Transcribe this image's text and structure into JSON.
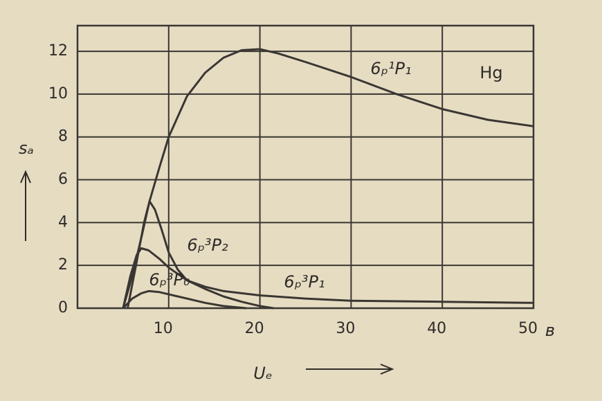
{
  "chart_data": {
    "type": "line",
    "xlim": [
      0,
      50
    ],
    "ylim": [
      0,
      13.2
    ],
    "xticks": [
      10,
      20,
      30,
      40,
      50
    ],
    "yticks": [
      0,
      2,
      4,
      6,
      8,
      10,
      12
    ],
    "grid": true,
    "x_label": "Uₑ",
    "y_label": "sₐ",
    "x_unit": "в",
    "annotation": "Hg",
    "series": [
      {
        "name": "6ₚ¹P₁",
        "color": "#3a3633",
        "x": [
          5,
          6,
          7,
          7.9,
          9,
          10,
          12,
          14,
          16,
          18,
          20,
          22,
          25,
          30,
          35,
          40,
          45,
          50
        ],
        "values": [
          0,
          1.5,
          3.3,
          5,
          6.6,
          8,
          9.9,
          11,
          11.7,
          12.05,
          12.1,
          11.9,
          11.5,
          10.8,
          10,
          9.3,
          8.8,
          8.5
        ]
      },
      {
        "name": "6ₚ³P₂",
        "color": "#3a3633",
        "x": [
          5.5,
          6.5,
          7.3,
          7.9,
          8.5,
          9.2,
          10,
          11,
          12,
          14,
          16,
          20,
          25,
          30,
          40,
          50
        ],
        "values": [
          0,
          2.2,
          4,
          5,
          4.6,
          3.7,
          2.6,
          1.8,
          1.3,
          1,
          0.8,
          0.6,
          0.45,
          0.35,
          0.3,
          0.25
        ]
      },
      {
        "name": "6ₚ³P₁",
        "color": "#3a3633",
        "x": [
          5,
          5.8,
          6.5,
          7,
          7.8,
          9,
          10,
          12,
          14,
          16,
          18,
          20,
          21.5
        ],
        "values": [
          0,
          1.5,
          2.5,
          2.8,
          2.7,
          2.3,
          1.9,
          1.3,
          0.9,
          0.55,
          0.3,
          0.1,
          0
        ]
      },
      {
        "name": "6ₚ³P₀",
        "color": "#3a3633",
        "x": [
          5,
          6,
          7,
          7.8,
          9,
          10,
          12,
          14,
          16,
          18.5
        ],
        "values": [
          0,
          0.45,
          0.7,
          0.8,
          0.75,
          0.65,
          0.45,
          0.25,
          0.1,
          0
        ]
      }
    ]
  }
}
